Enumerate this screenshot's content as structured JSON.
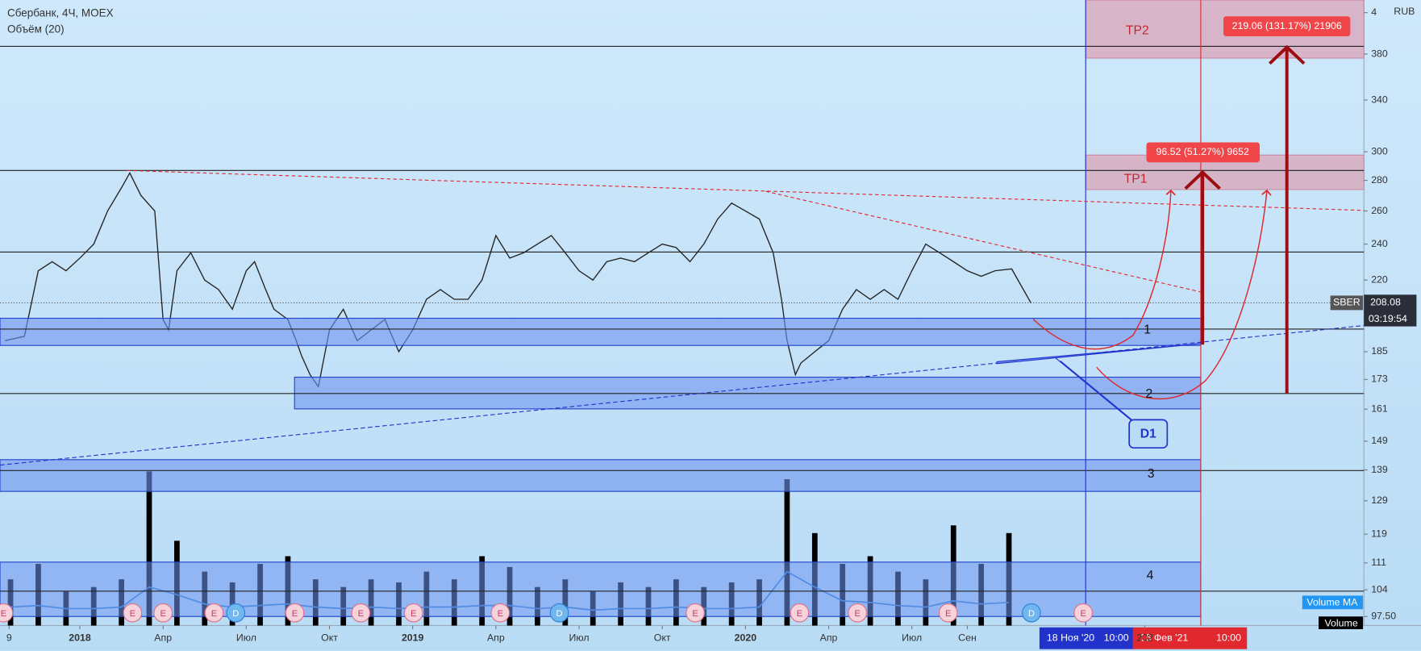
{
  "chart_data": {
    "type": "line",
    "title": "Сбербанк, 4Ч, MOEX",
    "subtitle": "Объём (20)",
    "currency": "RUB",
    "symbol": "SBER",
    "last_price": 208.08,
    "countdown": "03:19:54",
    "log_scale": true,
    "color": "#222222",
    "ylim": [
      95.4,
      433
    ],
    "yticks": [
      {
        "value": 420,
        "label": "4"
      },
      380,
      340,
      300,
      280,
      260,
      240,
      220,
      185,
      173,
      161,
      149,
      139,
      129,
      119,
      111,
      104,
      {
        "value": 97.5,
        "label": "97.50"
      }
    ],
    "xlim": [
      -2.88,
      46.3
    ],
    "xticks": [
      {
        "value": -2.55,
        "label": "9"
      },
      {
        "value": 0,
        "label": "2018"
      },
      {
        "value": 3,
        "label": "Апр"
      },
      {
        "value": 6,
        "label": "Июл"
      },
      {
        "value": 9,
        "label": "Окт"
      },
      {
        "value": 12,
        "label": "2019"
      },
      {
        "value": 15,
        "label": "Апр"
      },
      {
        "value": 18,
        "label": "Июл"
      },
      {
        "value": 21,
        "label": "Окт"
      },
      {
        "value": 24,
        "label": "2020"
      },
      {
        "value": 27,
        "label": "Апр"
      },
      {
        "value": 30,
        "label": "Июл"
      },
      {
        "value": 32,
        "label": "Сен"
      },
      {
        "value": 38.4,
        "label": "202"
      }
    ],
    "x": [
      -2.7,
      -2,
      -1.5,
      -1,
      -0.5,
      0,
      0.5,
      1,
      1.5,
      1.8,
      2.2,
      2.7,
      3,
      3.2,
      3.5,
      4,
      4.5,
      5,
      5.5,
      6,
      6.3,
      6.7,
      7,
      7.5,
      7.8,
      8,
      8.3,
      8.6,
      9,
      9.5,
      10,
      10.5,
      11,
      11.5,
      12,
      12.5,
      13,
      13.5,
      14,
      14.5,
      15,
      15.5,
      16,
      16.5,
      17,
      17.5,
      18,
      18.5,
      19,
      19.5,
      20,
      20.5,
      21,
      21.5,
      22,
      22.5,
      23,
      23.5,
      24,
      24.5,
      25,
      25.3,
      25.5,
      25.8,
      26,
      26.5,
      27,
      27.5,
      28,
      28.5,
      29,
      29.5,
      30,
      30.5,
      31,
      31.5,
      32,
      32.5,
      33,
      33.6,
      34.3
    ],
    "values": [
      190,
      192,
      225,
      230,
      225,
      232,
      240,
      260,
      275,
      285,
      270,
      260,
      200,
      195,
      225,
      235,
      220,
      215,
      205,
      225,
      230,
      215,
      205,
      200,
      190,
      183,
      175,
      170,
      195,
      205,
      190,
      195,
      200,
      185,
      195,
      210,
      215,
      210,
      210,
      220,
      245,
      232,
      235,
      240,
      245,
      235,
      225,
      220,
      230,
      232,
      230,
      235,
      240,
      238,
      230,
      240,
      255,
      265,
      260,
      255,
      235,
      210,
      190,
      175,
      180,
      185,
      190,
      205,
      215,
      210,
      215,
      210,
      225,
      240,
      235,
      230,
      225,
      222,
      225,
      226,
      208
    ],
    "volume": {
      "ylim": [
        0,
        100
      ],
      "color": "#000000",
      "ma_color": "#2f7fd6",
      "x": [
        -2.5,
        -1.5,
        -0.5,
        0.5,
        1.5,
        2.5,
        3.5,
        4.5,
        5.5,
        6.5,
        7.5,
        8.5,
        9.5,
        10.5,
        11.5,
        12.5,
        13.5,
        14.5,
        15.5,
        16.5,
        17.5,
        18.5,
        19.5,
        20.5,
        21.5,
        22.5,
        23.5,
        24.5,
        25.5,
        26.5,
        27.5,
        28.5,
        29.5,
        30.5,
        31.5,
        32.5,
        33.5
      ],
      "values": [
        30,
        40,
        22,
        25,
        30,
        100,
        55,
        35,
        28,
        40,
        45,
        30,
        25,
        30,
        28,
        35,
        30,
        45,
        38,
        25,
        30,
        22,
        28,
        25,
        30,
        25,
        28,
        30,
        95,
        60,
        40,
        45,
        35,
        30,
        65,
        40,
        60
      ],
      "ma": [
        12,
        13,
        11,
        11,
        12,
        25,
        20,
        14,
        12,
        13,
        14,
        12,
        11,
        12,
        11,
        12,
        12,
        13,
        13,
        11,
        12,
        10,
        11,
        11,
        12,
        11,
        11,
        12,
        35,
        25,
        16,
        15,
        13,
        12,
        16,
        14,
        15
      ]
    },
    "events": [
      {
        "x": -2.75,
        "label": "E"
      },
      {
        "x": 1.9,
        "label": "E"
      },
      {
        "x": 3.0,
        "label": "E"
      },
      {
        "x": 4.84,
        "label": "E"
      },
      {
        "x": 5.62,
        "label": "D"
      },
      {
        "x": 7.75,
        "label": "E"
      },
      {
        "x": 10.13,
        "label": "E"
      },
      {
        "x": 12.03,
        "label": "E"
      },
      {
        "x": 15.16,
        "label": "E"
      },
      {
        "x": 17.29,
        "label": "D"
      },
      {
        "x": 22.19,
        "label": "E"
      },
      {
        "x": 25.95,
        "label": "E"
      },
      {
        "x": 28.04,
        "label": "E"
      },
      {
        "x": 31.31,
        "label": "E"
      },
      {
        "x": 34.31,
        "label": "D"
      },
      {
        "x": 36.18,
        "label": "E"
      }
    ],
    "annotations": {
      "tp1": "TP1",
      "tp2": "TP2",
      "measure1": "96.52 (51.27%) 9652",
      "measure2": "219.06 (131.17%) 21906",
      "zone1": "1",
      "zone2": "2",
      "zone3": "3",
      "zone4": "4",
      "d1": "D1"
    },
    "indicator_labels": [
      "Volume MA",
      "Volume"
    ],
    "crosshair": [
      {
        "date": "18 Ноя '20",
        "time": "10:00"
      },
      {
        "date": "16 Фев '21",
        "time": "10:00"
      }
    ]
  }
}
